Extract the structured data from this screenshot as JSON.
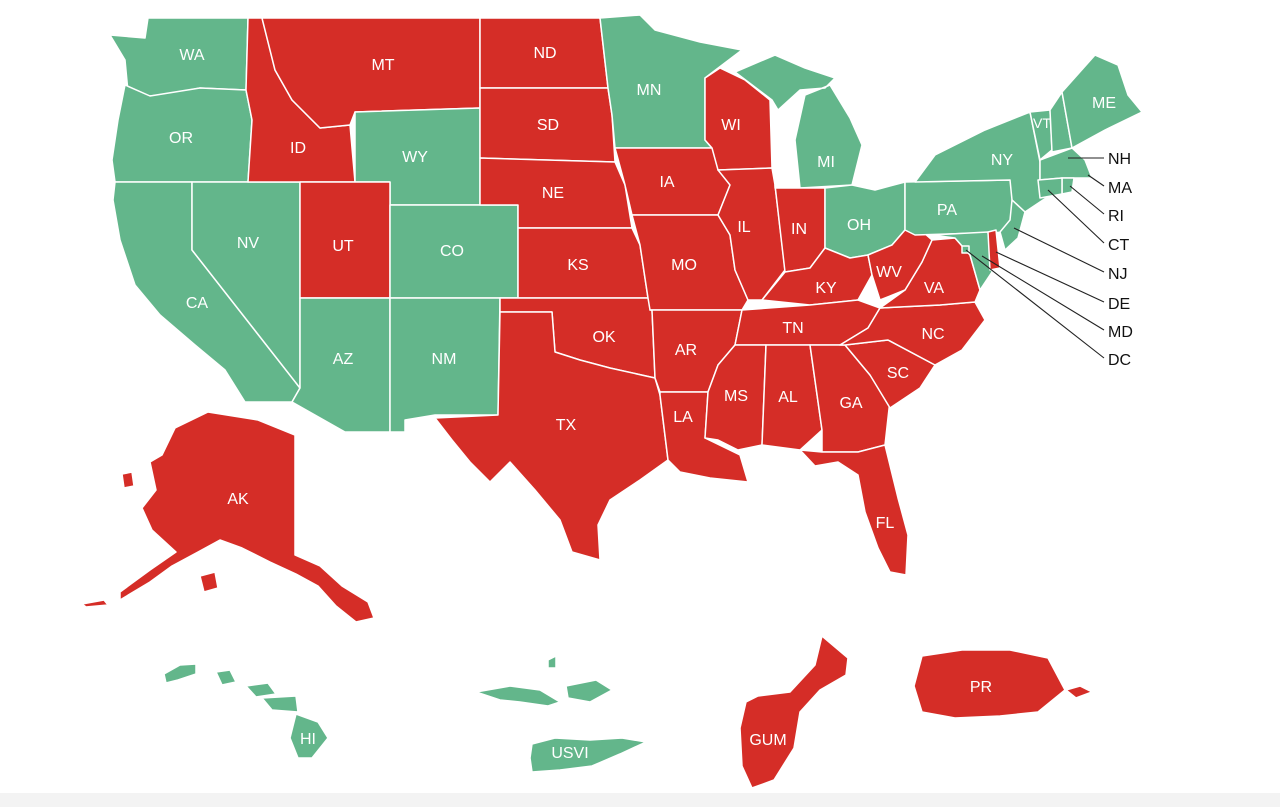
{
  "map": {
    "colors": {
      "green": "#63b68b",
      "red": "#d52d27",
      "border": "#ffffff",
      "callout_line": "#222222",
      "label_inside": "#ffffff",
      "label_outside": "#111111"
    },
    "states": [
      {
        "abbr": "WA",
        "status": "green"
      },
      {
        "abbr": "OR",
        "status": "green"
      },
      {
        "abbr": "CA",
        "status": "green"
      },
      {
        "abbr": "NV",
        "status": "green"
      },
      {
        "abbr": "ID",
        "status": "red"
      },
      {
        "abbr": "MT",
        "status": "red"
      },
      {
        "abbr": "WY",
        "status": "green"
      },
      {
        "abbr": "UT",
        "status": "red"
      },
      {
        "abbr": "CO",
        "status": "green"
      },
      {
        "abbr": "AZ",
        "status": "green"
      },
      {
        "abbr": "NM",
        "status": "green"
      },
      {
        "abbr": "ND",
        "status": "red"
      },
      {
        "abbr": "SD",
        "status": "red"
      },
      {
        "abbr": "NE",
        "status": "red"
      },
      {
        "abbr": "KS",
        "status": "red"
      },
      {
        "abbr": "OK",
        "status": "red"
      },
      {
        "abbr": "TX",
        "status": "red"
      },
      {
        "abbr": "MN",
        "status": "green"
      },
      {
        "abbr": "IA",
        "status": "red"
      },
      {
        "abbr": "MO",
        "status": "red"
      },
      {
        "abbr": "AR",
        "status": "red"
      },
      {
        "abbr": "LA",
        "status": "red"
      },
      {
        "abbr": "WI",
        "status": "red"
      },
      {
        "abbr": "IL",
        "status": "red"
      },
      {
        "abbr": "MI",
        "status": "green"
      },
      {
        "abbr": "IN",
        "status": "red"
      },
      {
        "abbr": "OH",
        "status": "green"
      },
      {
        "abbr": "KY",
        "status": "red"
      },
      {
        "abbr": "TN",
        "status": "red"
      },
      {
        "abbr": "MS",
        "status": "red"
      },
      {
        "abbr": "AL",
        "status": "red"
      },
      {
        "abbr": "GA",
        "status": "red"
      },
      {
        "abbr": "FL",
        "status": "red"
      },
      {
        "abbr": "SC",
        "status": "red"
      },
      {
        "abbr": "NC",
        "status": "red"
      },
      {
        "abbr": "VA",
        "status": "red"
      },
      {
        "abbr": "WV",
        "status": "red"
      },
      {
        "abbr": "PA",
        "status": "green"
      },
      {
        "abbr": "NY",
        "status": "green"
      },
      {
        "abbr": "VT",
        "status": "green"
      },
      {
        "abbr": "NH",
        "status": "green"
      },
      {
        "abbr": "ME",
        "status": "green"
      },
      {
        "abbr": "MA",
        "status": "green"
      },
      {
        "abbr": "RI",
        "status": "green"
      },
      {
        "abbr": "CT",
        "status": "green"
      },
      {
        "abbr": "NJ",
        "status": "green"
      },
      {
        "abbr": "DE",
        "status": "red"
      },
      {
        "abbr": "MD",
        "status": "green"
      },
      {
        "abbr": "DC",
        "status": "green"
      },
      {
        "abbr": "AK",
        "status": "red"
      },
      {
        "abbr": "HI",
        "status": "green"
      },
      {
        "abbr": "USVI",
        "status": "green"
      },
      {
        "abbr": "GUM",
        "status": "red"
      },
      {
        "abbr": "PR",
        "status": "red"
      }
    ]
  }
}
